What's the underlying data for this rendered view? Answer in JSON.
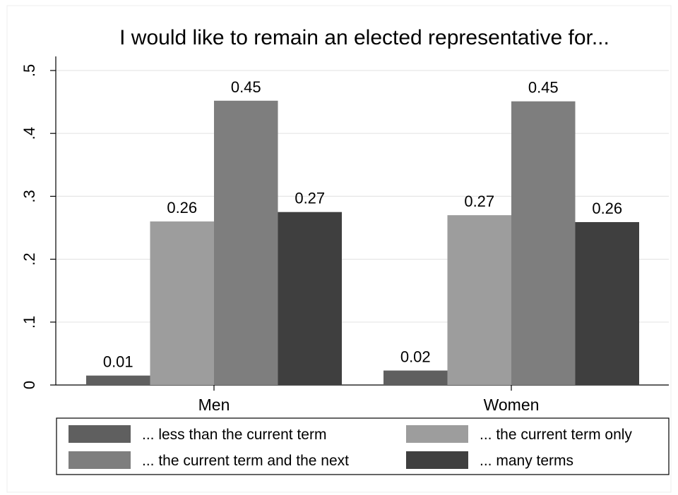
{
  "chart_data": {
    "type": "bar",
    "title": "I would like to remain an elected representative for...",
    "xlabel": "",
    "ylabel": "",
    "categories": [
      "Men",
      "Women"
    ],
    "ylim": [
      0,
      0.5
    ],
    "yticks": [
      0,
      0.1,
      0.2,
      0.3,
      0.4,
      0.5
    ],
    "ytick_labels": [
      "0",
      ".1",
      ".2",
      ".3",
      ".4",
      ".5"
    ],
    "grid": true,
    "legend_position": "bottom",
    "series": [
      {
        "name": "... less than the current term",
        "values": [
          0.015,
          0.023
        ],
        "labels": [
          "0.01",
          "0.02"
        ],
        "color": "#5f5f5f"
      },
      {
        "name": "... the current term only",
        "values": [
          0.26,
          0.27
        ],
        "labels": [
          "0.26",
          "0.27"
        ],
        "color": "#9d9d9d"
      },
      {
        "name": "... the current term and the next",
        "values": [
          0.452,
          0.451
        ],
        "labels": [
          "0.45",
          "0.45"
        ],
        "color": "#7e7e7e"
      },
      {
        "name": "... many terms",
        "values": [
          0.275,
          0.259
        ],
        "labels": [
          "0.27",
          "0.26"
        ],
        "color": "#3f3f3f"
      }
    ]
  }
}
